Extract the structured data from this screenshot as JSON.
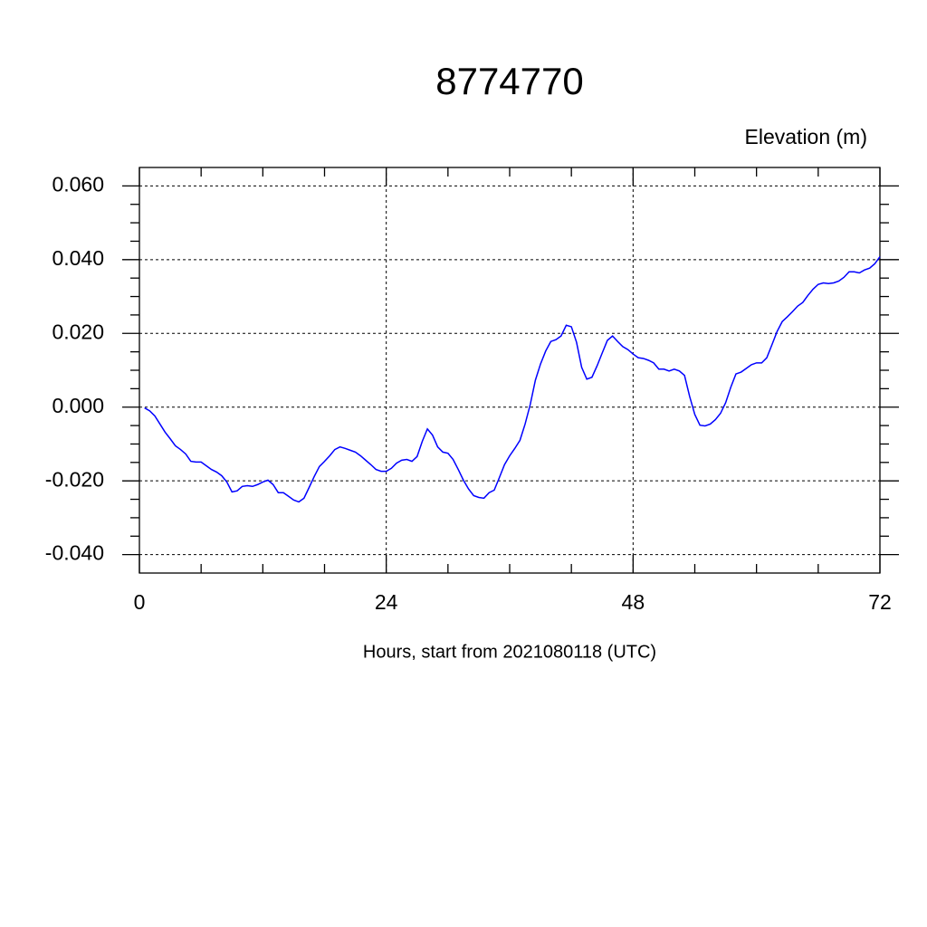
{
  "chart_data": {
    "type": "line",
    "title": "8774770",
    "subtitle": "Elevation (m)",
    "x_label": "Hours, start from 2021080118 (UTC)",
    "x": [
      0.5,
      1,
      1.5,
      2,
      2.5,
      3,
      3.5,
      4,
      4.5,
      5,
      5.5,
      6,
      6.5,
      7,
      7.5,
      8,
      8.5,
      9,
      9.5,
      10,
      10.5,
      11,
      11.5,
      12,
      12.5,
      13,
      13.5,
      14,
      14.5,
      15,
      15.5,
      16,
      16.5,
      17,
      17.5,
      18,
      18.5,
      19,
      19.5,
      20,
      20.5,
      21,
      21.5,
      22,
      22.5,
      23,
      23.5,
      24,
      24.5,
      25,
      25.5,
      26,
      26.5,
      27,
      27.5,
      28,
      28.5,
      29,
      29.5,
      30,
      30.5,
      31,
      31.5,
      32,
      32.5,
      33,
      33.5,
      34,
      34.5,
      35,
      35.5,
      36,
      36.5,
      37,
      37.5,
      38,
      38.5,
      39,
      39.5,
      40,
      40.5,
      41,
      41.5,
      42,
      42.5,
      43,
      43.5,
      44,
      44.5,
      45,
      45.5,
      46,
      46.5,
      47,
      47.5,
      48,
      48.5,
      49,
      49.5,
      50,
      50.5,
      51,
      51.5,
      52,
      52.5,
      53,
      53.5,
      54,
      54.5,
      55,
      55.5,
      56,
      56.5,
      57,
      57.5,
      58,
      58.5,
      59,
      59.5,
      60,
      60.5,
      61,
      61.5,
      62,
      62.5,
      63,
      63.5,
      64,
      64.5,
      65,
      65.5,
      66,
      66.5,
      67,
      67.5,
      68,
      68.5,
      69,
      69.5,
      70,
      70.5,
      71,
      71.5,
      72
    ],
    "series": [
      {
        "name": "Elevation",
        "color": "#0000ff",
        "values": [
          -0.0002,
          -0.001,
          -0.0024,
          -0.0046,
          -0.0068,
          -0.0086,
          -0.0105,
          -0.0115,
          -0.0127,
          -0.0147,
          -0.0149,
          -0.0149,
          -0.0159,
          -0.0169,
          -0.0176,
          -0.0186,
          -0.0203,
          -0.023,
          -0.0227,
          -0.0215,
          -0.0213,
          -0.0215,
          -0.021,
          -0.0203,
          -0.0198,
          -0.021,
          -0.0232,
          -0.0232,
          -0.0242,
          -0.0252,
          -0.0257,
          -0.0247,
          -0.0218,
          -0.0188,
          -0.0161,
          -0.0147,
          -0.0132,
          -0.0115,
          -0.0108,
          -0.0112,
          -0.0117,
          -0.0122,
          -0.0132,
          -0.0144,
          -0.0156,
          -0.0169,
          -0.0174,
          -0.0174,
          -0.0166,
          -0.0152,
          -0.0144,
          -0.0142,
          -0.0147,
          -0.0134,
          -0.0093,
          -0.0059,
          -0.0076,
          -0.0108,
          -0.0122,
          -0.0125,
          -0.0142,
          -0.0169,
          -0.0198,
          -0.0222,
          -0.024,
          -0.0245,
          -0.0247,
          -0.0232,
          -0.0225,
          -0.0191,
          -0.0156,
          -0.0132,
          -0.0112,
          -0.009,
          -0.0046,
          0.0007,
          0.0073,
          0.0117,
          0.0152,
          0.0178,
          0.0183,
          0.0193,
          0.0222,
          0.0218,
          0.0176,
          0.0108,
          0.0076,
          0.0081,
          0.0112,
          0.0147,
          0.0181,
          0.0193,
          0.0178,
          0.0164,
          0.0156,
          0.0144,
          0.0134,
          0.0132,
          0.0127,
          0.012,
          0.0103,
          0.0103,
          0.0098,
          0.0103,
          0.0098,
          0.0086,
          0.0029,
          -0.002,
          -0.0049,
          -0.0051,
          -0.0046,
          -0.0034,
          -0.0017,
          0.0012,
          0.0054,
          0.009,
          0.0095,
          0.0105,
          0.0115,
          0.012,
          0.012,
          0.0134,
          0.0169,
          0.0205,
          0.0232,
          0.0245,
          0.0259,
          0.0274,
          0.0284,
          0.0303,
          0.032,
          0.0333,
          0.0337,
          0.0335,
          0.0337,
          0.0342,
          0.0352,
          0.0367,
          0.0367,
          0.0364,
          0.0372,
          0.0377,
          0.0389,
          0.0408
        ]
      }
    ],
    "xlim": [
      0,
      72
    ],
    "xticks": [
      0,
      24,
      48,
      72
    ],
    "ylim": [
      -0.045,
      0.065
    ],
    "yticks": [
      {
        "value": -0.04,
        "label": "-0.040"
      },
      {
        "value": -0.02,
        "label": "-0.020"
      },
      {
        "value": 0,
        "label": "0.000"
      },
      {
        "value": 0.02,
        "label": "0.020"
      },
      {
        "value": 0.04,
        "label": "0.040"
      },
      {
        "value": 0.06,
        "label": "0.060"
      }
    ],
    "grid": true
  }
}
